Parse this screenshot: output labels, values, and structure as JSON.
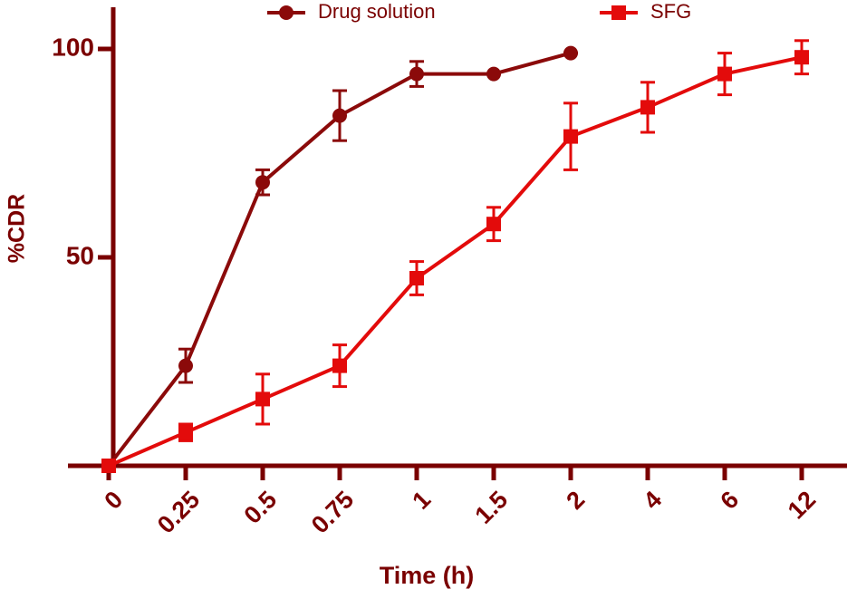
{
  "chart_data": {
    "type": "line",
    "x_label": "Time (h)",
    "y_label": "%CDR",
    "categories": [
      "0",
      "0.25",
      "0.5",
      "0.75",
      "1",
      "1.5",
      "2",
      "4",
      "6",
      "12"
    ],
    "ylim": [
      0,
      110
    ],
    "yticks": [
      50,
      100
    ],
    "legend": "top",
    "series": [
      {
        "name": "Drug solution",
        "color": "#8b0a0a",
        "marker": "circle",
        "values": [
          0,
          24,
          68,
          84,
          94,
          94,
          99,
          null,
          null,
          null
        ],
        "errors": [
          0,
          4,
          3,
          6,
          3,
          0,
          0,
          null,
          null,
          null
        ]
      },
      {
        "name": "SFG",
        "color": "#e30b0b",
        "marker": "square",
        "values": [
          0,
          8,
          16,
          24,
          45,
          58,
          79,
          86,
          94,
          98
        ],
        "errors": [
          0,
          2,
          6,
          5,
          4,
          4,
          8,
          6,
          5,
          4
        ]
      }
    ]
  }
}
